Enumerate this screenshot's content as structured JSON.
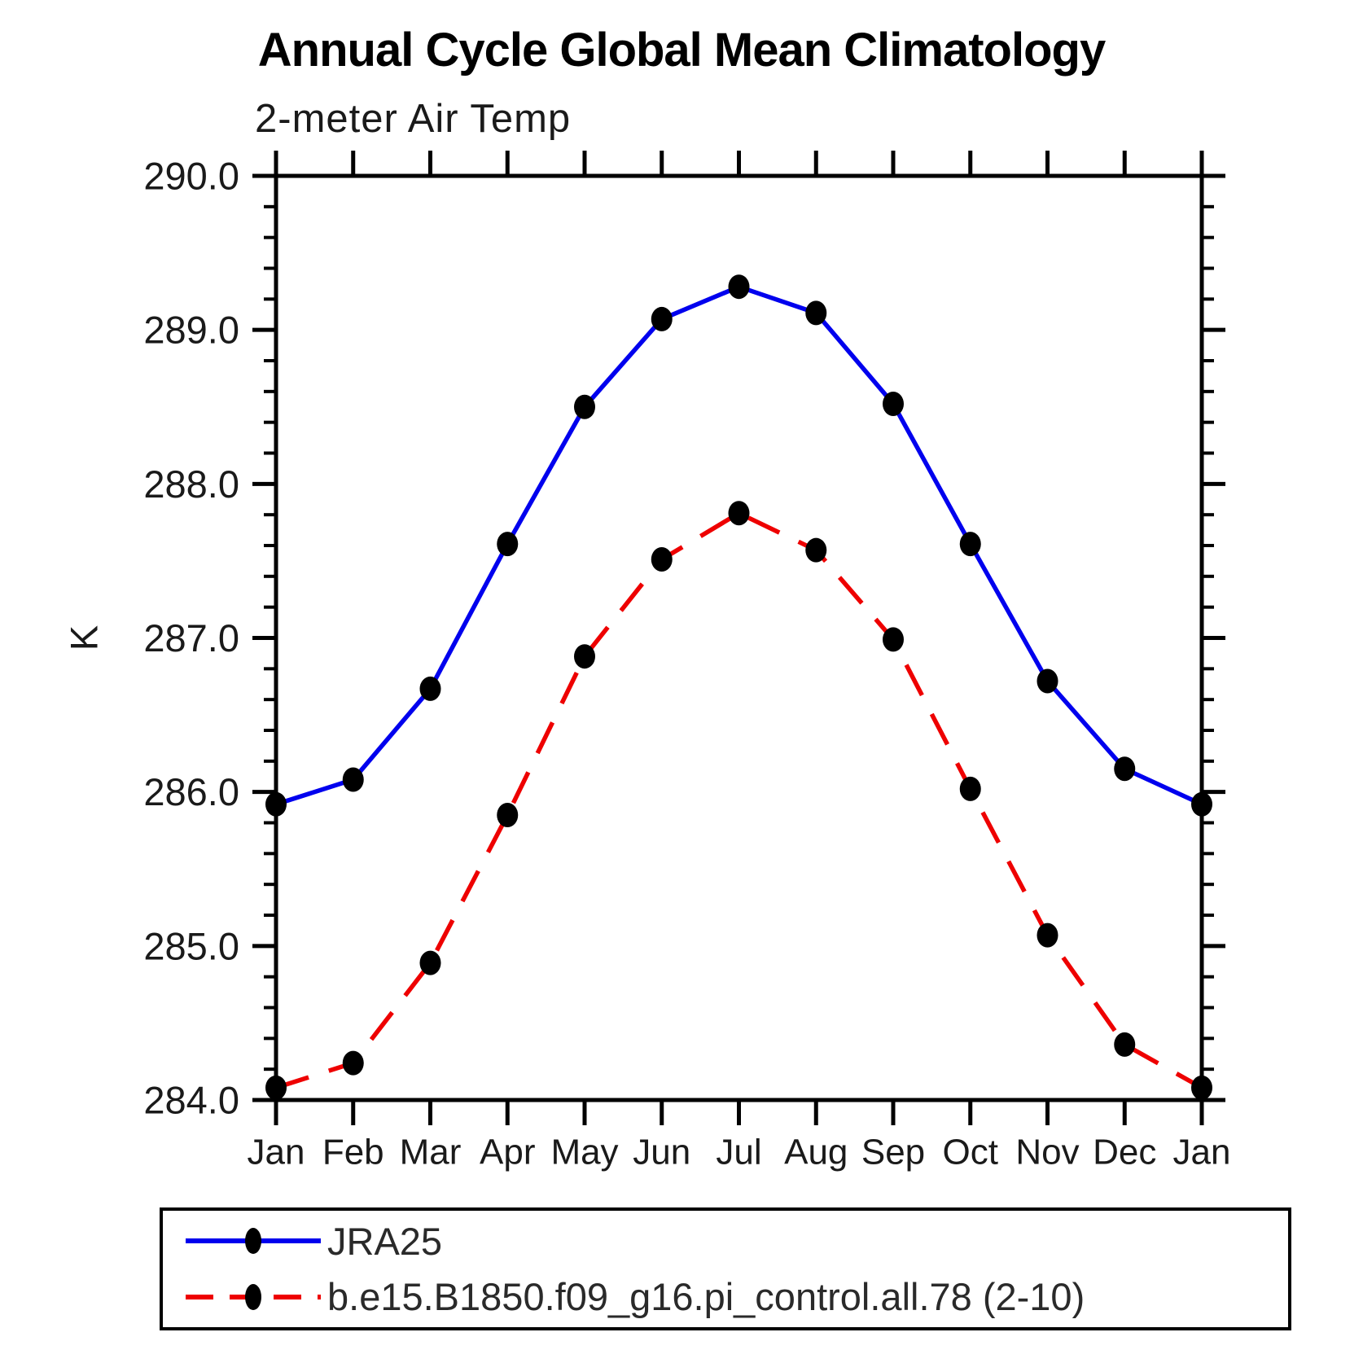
{
  "title": "Annual Cycle Global Mean Climatology",
  "subtitle": "2-meter Air Temp",
  "ylabel": "K",
  "chart_data": {
    "type": "line",
    "x_categories": [
      "Jan",
      "Feb",
      "Mar",
      "Apr",
      "May",
      "Jun",
      "Jul",
      "Aug",
      "Sep",
      "Oct",
      "Nov",
      "Dec",
      "Jan"
    ],
    "ylabel": "K",
    "ylim": [
      284.0,
      290.0
    ],
    "ytick_interval": 1.0,
    "yminor_interval": 0.2,
    "ytick_labels": [
      "284.0",
      "285.0",
      "286.0",
      "287.0",
      "288.0",
      "289.0",
      "290.0"
    ],
    "grid": "off",
    "legend_position": "bottom-left",
    "series": [
      {
        "name": "JRA25",
        "color": "#0000ee",
        "line_style": "solid",
        "marker_color": "#000000",
        "values": [
          285.92,
          286.08,
          286.67,
          287.61,
          288.5,
          289.07,
          289.28,
          289.11,
          288.52,
          287.61,
          286.72,
          286.15,
          285.92
        ]
      },
      {
        "name": "b.e15.B1850.f09_g16.pi_control.all.78 (2-10)",
        "color": "#ee0000",
        "line_style": "dashed",
        "marker_color": "#000000",
        "values": [
          284.08,
          284.24,
          284.89,
          285.85,
          286.88,
          287.51,
          287.81,
          287.57,
          286.99,
          286.02,
          285.07,
          284.36,
          284.08
        ]
      }
    ]
  }
}
